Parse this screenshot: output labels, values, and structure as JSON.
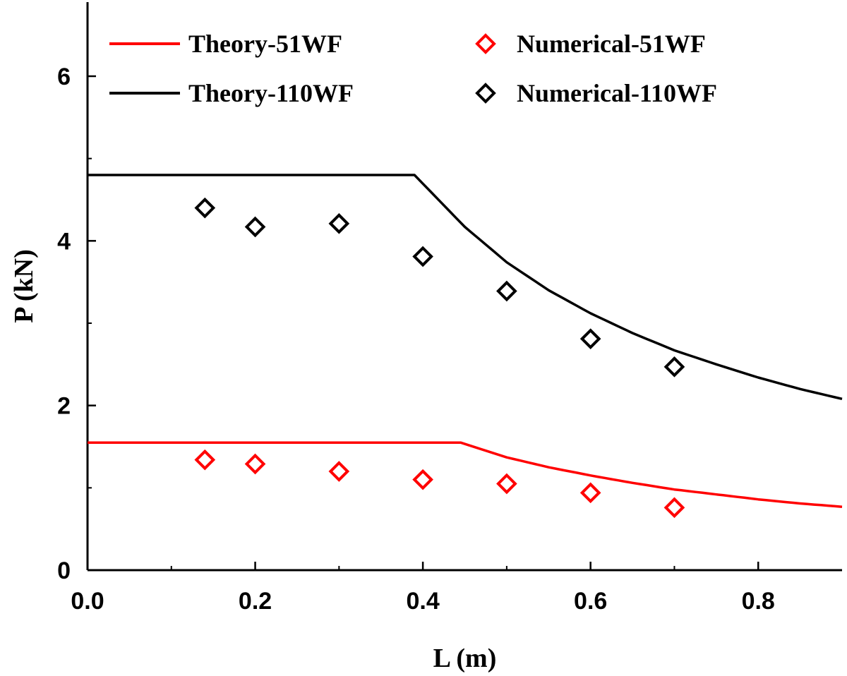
{
  "chart_data": {
    "type": "line",
    "title": "",
    "xlabel": "L (m)",
    "ylabel": "P (kN)",
    "xlim": [
      0.0,
      0.9
    ],
    "ylim": [
      0,
      6.9
    ],
    "x_ticks": [
      0.0,
      0.2,
      0.4,
      0.6,
      0.8
    ],
    "x_tick_labels": [
      "0.0",
      "0.2",
      "0.4",
      "0.6",
      "0.8"
    ],
    "y_ticks": [
      0,
      2,
      4,
      6
    ],
    "y_tick_labels": [
      "0",
      "2",
      "4",
      "6"
    ],
    "grid": false,
    "legend_position": "top",
    "series": [
      {
        "name": "Theory-51WF",
        "kind": "line",
        "color": "#ff0000",
        "plateau": 1.55,
        "plateau_end": 0.445,
        "x": [
          0.0,
          0.445,
          0.5,
          0.55,
          0.6,
          0.65,
          0.7,
          0.75,
          0.8,
          0.85,
          0.9
        ],
        "y": [
          1.55,
          1.55,
          1.37,
          1.25,
          1.15,
          1.06,
          0.98,
          0.92,
          0.86,
          0.81,
          0.77
        ]
      },
      {
        "name": "Theory-110WF",
        "kind": "line",
        "color": "#000000",
        "plateau": 4.8,
        "plateau_end": 0.39,
        "x": [
          0.0,
          0.39,
          0.45,
          0.5,
          0.55,
          0.6,
          0.65,
          0.7,
          0.75,
          0.8,
          0.85,
          0.9
        ],
        "y": [
          4.8,
          4.8,
          4.17,
          3.74,
          3.4,
          3.12,
          2.88,
          2.67,
          2.5,
          2.34,
          2.2,
          2.08
        ]
      },
      {
        "name": "Numerical-51WF",
        "kind": "scatter",
        "marker": "diamond",
        "color": "#ff0000",
        "x": [
          0.14,
          0.2,
          0.3,
          0.4,
          0.5,
          0.6,
          0.7
        ],
        "y": [
          1.34,
          1.29,
          1.2,
          1.1,
          1.05,
          0.94,
          0.76
        ]
      },
      {
        "name": "Numerical-110WF",
        "kind": "scatter",
        "marker": "diamond",
        "color": "#000000",
        "x": [
          0.14,
          0.2,
          0.3,
          0.4,
          0.5,
          0.6,
          0.7
        ],
        "y": [
          4.4,
          4.17,
          4.21,
          3.81,
          3.39,
          2.81,
          2.47
        ]
      }
    ]
  }
}
